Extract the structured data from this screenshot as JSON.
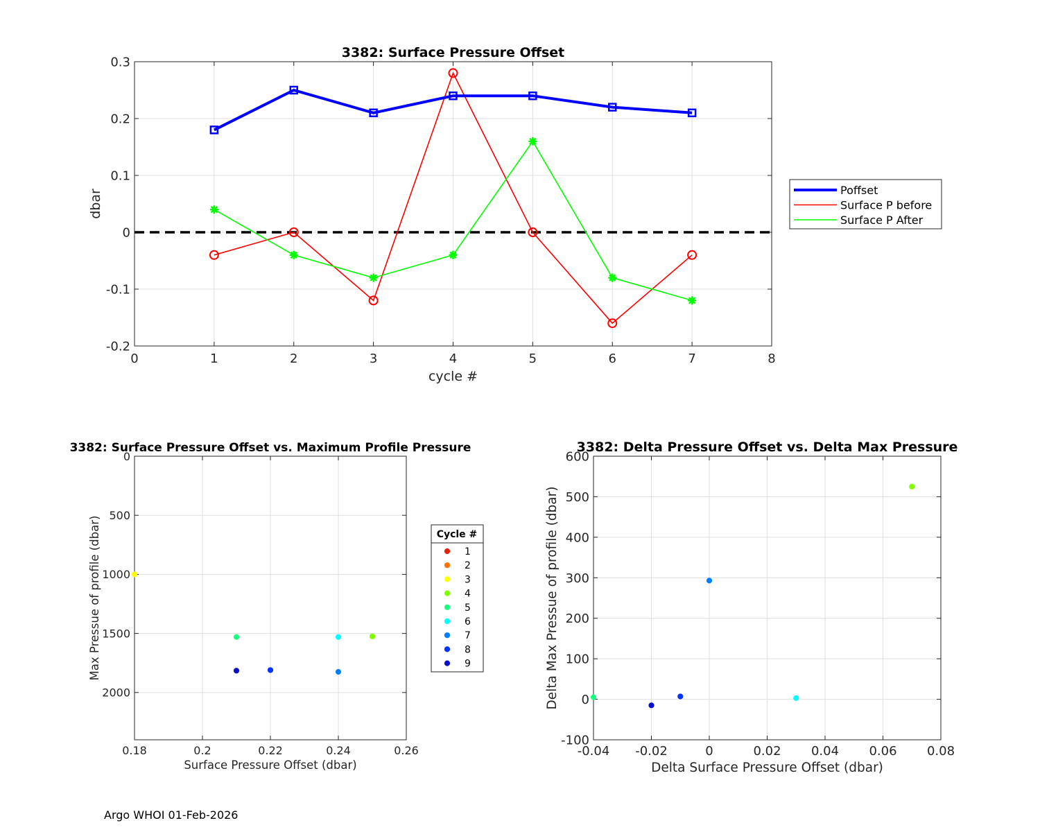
{
  "footer": "Argo WHOI 01-Feb-2026",
  "colors": {
    "poffset": "#0000ff",
    "before": "#ff0000",
    "after": "#00ff00",
    "zero_line": "#000000",
    "grid": "#e0e0e0"
  },
  "chart_data": [
    {
      "id": "top",
      "type": "line",
      "title": "3382: Surface Pressure Offset",
      "xlabel": "cycle #",
      "ylabel": "dbar",
      "xlim": [
        0,
        8
      ],
      "ylim": [
        -0.2,
        0.3
      ],
      "xticks": [
        0,
        1,
        2,
        3,
        4,
        5,
        6,
        7,
        8
      ],
      "xtick_labels": [
        "0",
        "1",
        "2",
        "3",
        "4",
        "5",
        "6",
        "7",
        "8"
      ],
      "yticks": [
        -0.2,
        -0.1,
        0,
        0.1,
        0.2,
        0.3
      ],
      "ytick_labels": [
        "-0.2",
        "-0.1",
        "0",
        "0.1",
        "0.2",
        "0.3"
      ],
      "grid": true,
      "legend_position": "outside-right",
      "reference_line": {
        "y": 0,
        "style": "dashed"
      },
      "x": [
        1,
        2,
        3,
        4,
        5,
        6,
        7
      ],
      "series": [
        {
          "name": "Poffset",
          "color": "#0000ff",
          "marker": "square",
          "width": "thick",
          "values": [
            0.18,
            0.25,
            0.21,
            0.24,
            0.24,
            0.22,
            0.21
          ]
        },
        {
          "name": "Surface P before",
          "color": "#ff0000",
          "marker": "circle",
          "width": "thin",
          "values": [
            -0.04,
            0.0,
            -0.12,
            0.28,
            0.0,
            -0.16,
            -0.04
          ]
        },
        {
          "name": "Surface P After",
          "color": "#00ff00",
          "marker": "star",
          "width": "thin",
          "values": [
            0.04,
            -0.04,
            -0.08,
            -0.04,
            0.16,
            -0.08,
            -0.12
          ]
        }
      ]
    },
    {
      "id": "bl",
      "type": "scatter",
      "title": "3382: Surface Pressure Offset vs. Maximum Profile Pressure",
      "xlabel": "Surface Pressure Offset (dbar)",
      "ylabel": "Max Pressue of profile (dbar)",
      "xlim": [
        0.18,
        0.26
      ],
      "ylim": [
        0,
        2400
      ],
      "y_reversed": true,
      "xticks": [
        0.18,
        0.2,
        0.22,
        0.24,
        0.26
      ],
      "xtick_labels": [
        "0.18",
        "0.2",
        "0.22",
        "0.24",
        "0.26"
      ],
      "yticks": [
        0,
        500,
        1000,
        1500,
        2000
      ],
      "ytick_labels": [
        "0",
        "500",
        "1000",
        "1500",
        "2000"
      ],
      "grid": true,
      "legend_title": "Cycle #",
      "legend_position": "outside-right",
      "legend": [
        {
          "label": "1",
          "color": "#e8220a"
        },
        {
          "label": "2",
          "color": "#ff7300"
        },
        {
          "label": "3",
          "color": "#ffff00"
        },
        {
          "label": "4",
          "color": "#80ff00"
        },
        {
          "label": "5",
          "color": "#1aff80"
        },
        {
          "label": "6",
          "color": "#00ffff"
        },
        {
          "label": "7",
          "color": "#0080ff"
        },
        {
          "label": "8",
          "color": "#0033ff"
        },
        {
          "label": "9",
          "color": "#0a10c8"
        }
      ],
      "points": [
        {
          "cycle": 3,
          "x": 0.18,
          "y": 1000,
          "color": "#ffff00"
        },
        {
          "cycle": 5,
          "x": 0.21,
          "y": 1530,
          "color": "#1aff80"
        },
        {
          "cycle": 4,
          "x": 0.25,
          "y": 1525,
          "color": "#80ff00"
        },
        {
          "cycle": 6,
          "x": 0.24,
          "y": 1530,
          "color": "#00ffff"
        },
        {
          "cycle": 9,
          "x": 0.21,
          "y": 1815,
          "color": "#0a10c8"
        },
        {
          "cycle": 8,
          "x": 0.22,
          "y": 1810,
          "color": "#0033ff"
        },
        {
          "cycle": 7,
          "x": 0.24,
          "y": 1825,
          "color": "#0080ff"
        }
      ]
    },
    {
      "id": "br",
      "type": "scatter",
      "title": "3382: Delta Pressure Offset vs. Delta Max Pressure",
      "xlabel": "Delta Surface Pressure Offset (dbar)",
      "ylabel": "Delta Max Pressue of profile (dbar)",
      "xlim": [
        -0.04,
        0.08
      ],
      "ylim": [
        -100,
        600
      ],
      "xticks": [
        -0.04,
        -0.02,
        0,
        0.02,
        0.04,
        0.06,
        0.08
      ],
      "xtick_labels": [
        "-0.04",
        "-0.02",
        "0",
        "0.02",
        "0.04",
        "0.06",
        "0.08"
      ],
      "yticks": [
        -100,
        0,
        100,
        200,
        300,
        400,
        500,
        600
      ],
      "ytick_labels": [
        "-100",
        "0",
        "100",
        "200",
        "300",
        "400",
        "500",
        "600"
      ],
      "grid": true,
      "points": [
        {
          "x": 0.07,
          "y": 525,
          "color": "#80ff00"
        },
        {
          "x": -0.04,
          "y": 5,
          "color": "#1aff80"
        },
        {
          "x": 0.0,
          "y": 293,
          "color": "#0080ff"
        },
        {
          "x": 0.03,
          "y": 3,
          "color": "#00ffff"
        },
        {
          "x": -0.02,
          "y": -15,
          "color": "#0a10c8"
        },
        {
          "x": -0.01,
          "y": 7,
          "color": "#0033ff"
        }
      ]
    }
  ]
}
